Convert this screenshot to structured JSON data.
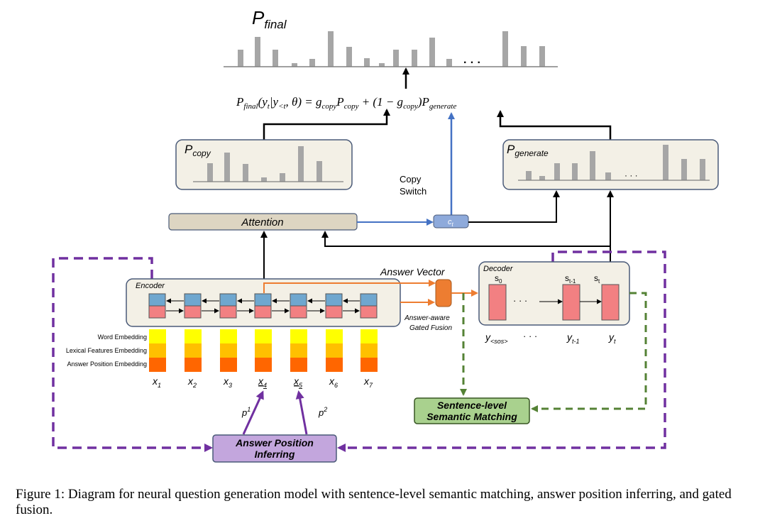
{
  "title": {
    "main": "P",
    "sub": "final"
  },
  "formula": {
    "lhs_p": "P",
    "lhs_sub": "final",
    "lhs_args": "(y",
    "lhs_t": "t",
    "lhs_bar": "|y",
    "lhs_lt": "<t",
    "lhs_theta": ", θ) = g",
    "g1_sub": "copy",
    "p1": "P",
    "p1_sub": "copy",
    "mid": " + (1 − g",
    "g2_sub": "copy",
    "close": ")P",
    "p2_sub": "generate"
  },
  "boxes": {
    "p_copy": {
      "main": "P",
      "sub": "copy"
    },
    "p_generate": {
      "main": "P",
      "sub": "generate"
    },
    "attention": "Attention",
    "encoder": "Encoder",
    "decoder": "Decoder",
    "copy_switch_line1": "Copy",
    "copy_switch_line2": "Switch",
    "ct_main": "c",
    "ct_sub": "t",
    "answer_vector": "Answer Vector",
    "gated_fusion_line1": "Answer-aware",
    "gated_fusion_line2": "Gated Fusion",
    "semantic_line1": "Sentence-level",
    "semantic_line2": "Semantic Matching",
    "answer_pos_line1": "Answer Position",
    "answer_pos_line2": "Inferring"
  },
  "embedding_legend": [
    "Word Embedding",
    "Lexical Features Embedding",
    "Answer Position Embedding"
  ],
  "inputs": [
    {
      "main": "x",
      "sub": "1",
      "underline": false
    },
    {
      "main": "x",
      "sub": "2",
      "underline": false
    },
    {
      "main": "x",
      "sub": "3",
      "underline": false
    },
    {
      "main": "x",
      "sub": "4",
      "underline": true
    },
    {
      "main": "x",
      "sub": "5",
      "underline": true
    },
    {
      "main": "x",
      "sub": "6",
      "underline": false
    },
    {
      "main": "x",
      "sub": "7",
      "underline": false
    }
  ],
  "p1": {
    "main": "p",
    "sup": "1"
  },
  "p2": {
    "main": "p",
    "sup": "2"
  },
  "decoder_states": {
    "s0_main": "s",
    "s0_sub": "0",
    "st1_main": "s",
    "st1_sub": "t-1",
    "st_main": "s",
    "st_sub": "t",
    "dots": "· · ·"
  },
  "decoder_outputs": {
    "y_sos_main": "y",
    "y_sos_sub": "<sos>",
    "dots": "· · ·",
    "yt1_main": "y",
    "yt1_sub": "t-1",
    "yt_main": "y",
    "yt_sub": "t"
  },
  "dist_dots": "· · ·",
  "dist_dots_small": "· · ·",
  "caption": "Figure 1: Diagram for neural question generation model with sentence-level semantic matching, answer position inferring, and gated fusion.",
  "colors": {
    "bar": "#a6a6a6",
    "panel_fill": "#f3f0e6",
    "panel_stroke": "#4a5a78",
    "attention_fill": "#ddd5c2",
    "blue_cell": "#6fa7cf",
    "red_cell": "#f28082",
    "word_emb": "#ffff00",
    "lex_emb": "#ffc000",
    "pos_emb": "#ff6600",
    "gate": "#ed7d31",
    "semantic_fill": "#a9d18e",
    "answerpos_fill": "#c3a6dd",
    "purple_dash": "#7030a0",
    "green_dash": "#548235",
    "blue_line": "#4472c4",
    "orange_line": "#ed7d31"
  }
}
